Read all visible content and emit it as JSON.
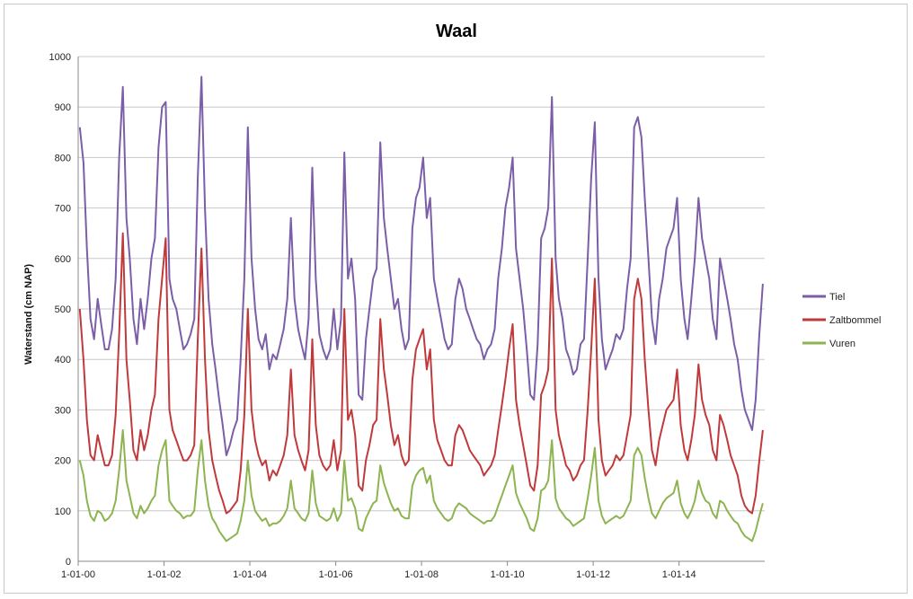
{
  "chart_data": {
    "type": "line",
    "title": "Waal",
    "xlabel": "",
    "ylabel": "Waterstand (cm NAP)",
    "ylim": [
      0,
      1000
    ],
    "yticks": [
      0,
      100,
      200,
      300,
      400,
      500,
      600,
      700,
      800,
      900,
      1000
    ],
    "xlim": [
      "2000-01-01",
      "2015-12-31"
    ],
    "xtick_labels": [
      "1-01-00",
      "1-01-02",
      "1-01-04",
      "1-01-06",
      "1-01-08",
      "1-01-10",
      "1-01-12",
      "1-01-14"
    ],
    "xtick_dates": [
      "2000-01-01",
      "2002-01-01",
      "2004-01-01",
      "2006-01-01",
      "2008-01-01",
      "2010-01-01",
      "2012-01-01",
      "2014-01-01"
    ],
    "grid": "horizontal",
    "legend_position": "right",
    "series_shape_note": "Approximate monthly water levels read off the plot; the original shows daily noisy traces.",
    "x": [
      "2000-01",
      "2000-02",
      "2000-03",
      "2000-04",
      "2000-05",
      "2000-06",
      "2000-07",
      "2000-08",
      "2000-09",
      "2000-10",
      "2000-11",
      "2000-12",
      "2001-01",
      "2001-02",
      "2001-03",
      "2001-04",
      "2001-05",
      "2001-06",
      "2001-07",
      "2001-08",
      "2001-09",
      "2001-10",
      "2001-11",
      "2001-12",
      "2002-01",
      "2002-02",
      "2002-03",
      "2002-04",
      "2002-05",
      "2002-06",
      "2002-07",
      "2002-08",
      "2002-09",
      "2002-10",
      "2002-11",
      "2002-12",
      "2003-01",
      "2003-02",
      "2003-03",
      "2003-04",
      "2003-05",
      "2003-06",
      "2003-07",
      "2003-08",
      "2003-09",
      "2003-10",
      "2003-11",
      "2003-12",
      "2004-01",
      "2004-02",
      "2004-03",
      "2004-04",
      "2004-05",
      "2004-06",
      "2004-07",
      "2004-08",
      "2004-09",
      "2004-10",
      "2004-11",
      "2004-12",
      "2005-01",
      "2005-02",
      "2005-03",
      "2005-04",
      "2005-05",
      "2005-06",
      "2005-07",
      "2005-08",
      "2005-09",
      "2005-10",
      "2005-11",
      "2005-12",
      "2006-01",
      "2006-02",
      "2006-03",
      "2006-04",
      "2006-05",
      "2006-06",
      "2006-07",
      "2006-08",
      "2006-09",
      "2006-10",
      "2006-11",
      "2006-12",
      "2007-01",
      "2007-02",
      "2007-03",
      "2007-04",
      "2007-05",
      "2007-06",
      "2007-07",
      "2007-08",
      "2007-09",
      "2007-10",
      "2007-11",
      "2007-12",
      "2008-01",
      "2008-02",
      "2008-03",
      "2008-04",
      "2008-05",
      "2008-06",
      "2008-07",
      "2008-08",
      "2008-09",
      "2008-10",
      "2008-11",
      "2008-12",
      "2009-01",
      "2009-02",
      "2009-03",
      "2009-04",
      "2009-05",
      "2009-06",
      "2009-07",
      "2009-08",
      "2009-09",
      "2009-10",
      "2009-11",
      "2009-12",
      "2010-01",
      "2010-02",
      "2010-03",
      "2010-04",
      "2010-05",
      "2010-06",
      "2010-07",
      "2010-08",
      "2010-09",
      "2010-10",
      "2010-11",
      "2010-12",
      "2011-01",
      "2011-02",
      "2011-03",
      "2011-04",
      "2011-05",
      "2011-06",
      "2011-07",
      "2011-08",
      "2011-09",
      "2011-10",
      "2011-11",
      "2011-12",
      "2012-01",
      "2012-02",
      "2012-03",
      "2012-04",
      "2012-05",
      "2012-06",
      "2012-07",
      "2012-08",
      "2012-09",
      "2012-10",
      "2012-11",
      "2012-12",
      "2013-01",
      "2013-02",
      "2013-03",
      "2013-04",
      "2013-05",
      "2013-06",
      "2013-07",
      "2013-08",
      "2013-09",
      "2013-10",
      "2013-11",
      "2013-12",
      "2014-01",
      "2014-02",
      "2014-03",
      "2014-04",
      "2014-05",
      "2014-06",
      "2014-07",
      "2014-08",
      "2014-09",
      "2014-10",
      "2014-11",
      "2014-12",
      "2015-01",
      "2015-02",
      "2015-03",
      "2015-04",
      "2015-05",
      "2015-06",
      "2015-07",
      "2015-08",
      "2015-09",
      "2015-10",
      "2015-11",
      "2015-12"
    ],
    "series": [
      {
        "name": "Tiel",
        "color": "#7b5ea7",
        "values": [
          860,
          790,
          620,
          480,
          440,
          520,
          470,
          420,
          420,
          460,
          560,
          800,
          940,
          680,
          600,
          480,
          430,
          520,
          460,
          520,
          600,
          640,
          820,
          900,
          910,
          560,
          520,
          500,
          460,
          420,
          430,
          450,
          480,
          760,
          960,
          700,
          520,
          430,
          380,
          320,
          270,
          210,
          230,
          260,
          280,
          400,
          560,
          860,
          600,
          500,
          440,
          420,
          450,
          380,
          410,
          400,
          430,
          460,
          520,
          680,
          520,
          460,
          430,
          400,
          480,
          780,
          560,
          450,
          420,
          400,
          420,
          500,
          420,
          480,
          810,
          560,
          600,
          520,
          330,
          320,
          440,
          500,
          560,
          580,
          830,
          680,
          620,
          560,
          500,
          520,
          460,
          420,
          440,
          660,
          720,
          740,
          800,
          680,
          720,
          560,
          520,
          480,
          440,
          420,
          430,
          520,
          560,
          540,
          500,
          480,
          460,
          440,
          430,
          400,
          420,
          430,
          460,
          560,
          620,
          700,
          740,
          800,
          620,
          560,
          500,
          420,
          330,
          320,
          430,
          640,
          660,
          700,
          920,
          600,
          520,
          480,
          420,
          400,
          370,
          380,
          430,
          440,
          600,
          760,
          870,
          560,
          440,
          380,
          400,
          420,
          450,
          440,
          460,
          540,
          600,
          860,
          880,
          840,
          720,
          600,
          480,
          430,
          520,
          560,
          620,
          640,
          660,
          720,
          560,
          480,
          440,
          520,
          600,
          720,
          640,
          600,
          560,
          480,
          440,
          600,
          560,
          520,
          480,
          430,
          400,
          340,
          300,
          280,
          260,
          320,
          450,
          550
        ]
      },
      {
        "name": "Zaltbommel",
        "color": "#c0393b",
        "values": [
          500,
          400,
          280,
          210,
          200,
          250,
          220,
          190,
          190,
          210,
          290,
          450,
          650,
          400,
          320,
          220,
          200,
          260,
          220,
          250,
          300,
          330,
          480,
          560,
          640,
          300,
          260,
          240,
          220,
          200,
          200,
          210,
          230,
          440,
          620,
          400,
          260,
          200,
          170,
          140,
          120,
          95,
          100,
          110,
          120,
          180,
          290,
          500,
          300,
          240,
          210,
          190,
          200,
          160,
          180,
          170,
          190,
          210,
          250,
          380,
          250,
          220,
          200,
          180,
          220,
          440,
          270,
          210,
          190,
          180,
          190,
          240,
          180,
          220,
          500,
          280,
          300,
          250,
          150,
          140,
          200,
          230,
          270,
          280,
          480,
          380,
          330,
          270,
          230,
          250,
          210,
          190,
          200,
          360,
          420,
          440,
          460,
          380,
          420,
          280,
          240,
          220,
          200,
          190,
          190,
          250,
          270,
          260,
          240,
          220,
          210,
          200,
          190,
          170,
          180,
          190,
          210,
          260,
          310,
          360,
          420,
          470,
          320,
          270,
          230,
          190,
          150,
          140,
          190,
          330,
          350,
          380,
          600,
          300,
          250,
          220,
          190,
          180,
          160,
          170,
          190,
          200,
          300,
          420,
          560,
          280,
          200,
          170,
          180,
          190,
          210,
          200,
          210,
          250,
          290,
          520,
          560,
          520,
          400,
          300,
          220,
          190,
          240,
          270,
          300,
          310,
          320,
          380,
          270,
          220,
          200,
          240,
          290,
          390,
          320,
          290,
          270,
          220,
          200,
          290,
          270,
          240,
          210,
          190,
          170,
          130,
          110,
          100,
          95,
          130,
          200,
          260
        ]
      },
      {
        "name": "Vuren",
        "color": "#8db450",
        "values": [
          200,
          170,
          120,
          90,
          80,
          100,
          95,
          80,
          85,
          95,
          120,
          180,
          260,
          160,
          130,
          95,
          85,
          110,
          95,
          105,
          120,
          130,
          190,
          220,
          240,
          120,
          110,
          100,
          95,
          85,
          90,
          90,
          100,
          180,
          240,
          160,
          110,
          85,
          75,
          60,
          50,
          40,
          45,
          50,
          55,
          80,
          120,
          200,
          130,
          100,
          90,
          80,
          85,
          70,
          75,
          75,
          80,
          90,
          105,
          160,
          105,
          95,
          85,
          80,
          95,
          180,
          115,
          90,
          85,
          80,
          85,
          105,
          80,
          95,
          200,
          120,
          125,
          105,
          65,
          60,
          85,
          100,
          115,
          120,
          190,
          155,
          135,
          115,
          100,
          105,
          90,
          85,
          85,
          150,
          170,
          180,
          185,
          155,
          170,
          120,
          105,
          95,
          85,
          80,
          85,
          105,
          115,
          110,
          105,
          95,
          90,
          85,
          80,
          75,
          80,
          80,
          90,
          110,
          130,
          150,
          170,
          190,
          135,
          115,
          100,
          85,
          65,
          60,
          85,
          140,
          145,
          160,
          240,
          125,
          105,
          95,
          85,
          80,
          70,
          75,
          80,
          85,
          125,
          170,
          225,
          120,
          90,
          75,
          80,
          85,
          90,
          85,
          90,
          105,
          120,
          210,
          225,
          210,
          165,
          125,
          95,
          85,
          100,
          115,
          125,
          130,
          135,
          160,
          115,
          95,
          85,
          100,
          120,
          160,
          135,
          120,
          115,
          95,
          85,
          120,
          115,
          100,
          90,
          80,
          75,
          60,
          50,
          45,
          40,
          60,
          90,
          115
        ]
      }
    ]
  }
}
